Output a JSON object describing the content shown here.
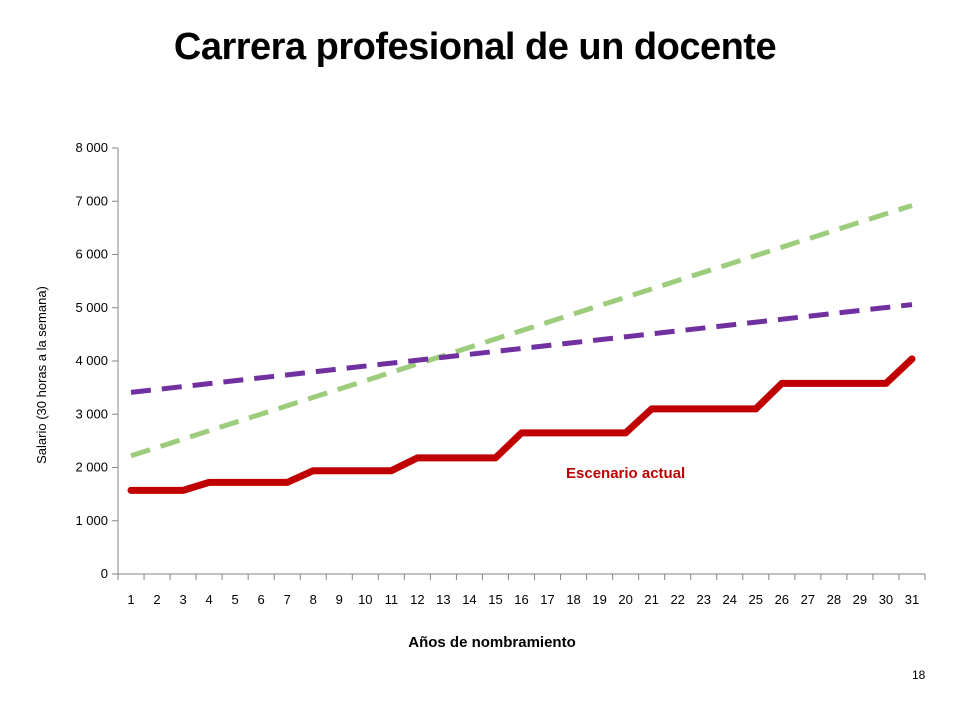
{
  "chart_data": {
    "type": "line",
    "title": "Carrera profesional de un docente",
    "xlabel": "Años de nombramiento",
    "ylabel": "Salario (30 horas a la semana)",
    "x": [
      1,
      2,
      3,
      4,
      5,
      6,
      7,
      8,
      9,
      10,
      11,
      12,
      13,
      14,
      15,
      16,
      17,
      18,
      19,
      20,
      21,
      22,
      23,
      24,
      25,
      26,
      27,
      28,
      29,
      30,
      31
    ],
    "ylim": [
      0,
      8000
    ],
    "yticks": [
      0,
      1000,
      2000,
      3000,
      4000,
      5000,
      6000,
      7000,
      8000
    ],
    "ytick_labels": [
      "0",
      "1 000",
      "2 000",
      "3 000",
      "4 000",
      "5 000",
      "6 000",
      "7 000",
      "8 000"
    ],
    "grid": false,
    "legend": "none",
    "series": [
      {
        "color": "#9ccc7c",
        "style": "dashed",
        "values": [
          2220,
          2390,
          2560,
          2730,
          2900,
          3070,
          3240,
          3410,
          3580,
          3750,
          3920,
          4070,
          4220,
          4370,
          4520,
          4670,
          4820,
          4970,
          5120,
          5270,
          5420,
          5570,
          5720,
          5870,
          6020,
          6170,
          6320,
          6470,
          6620,
          6770,
          6920
        ]
      },
      {
        "color": "#7030a0",
        "style": "dashed",
        "values": [
          3410,
          3465,
          3520,
          3575,
          3630,
          3685,
          3740,
          3795,
          3850,
          3905,
          3960,
          4015,
          4070,
          4125,
          4180,
          4235,
          4290,
          4345,
          4400,
          4455,
          4510,
          4565,
          4620,
          4675,
          4730,
          4785,
          4840,
          4895,
          4950,
          5005,
          5060
        ]
      },
      {
        "name": "Escenario actual",
        "color": "#c00000",
        "style": "solid",
        "values": [
          1570,
          1570,
          1570,
          1720,
          1720,
          1720,
          1720,
          1940,
          1940,
          1940,
          1940,
          2180,
          2180,
          2180,
          2180,
          2650,
          2650,
          2650,
          2650,
          2650,
          3100,
          3100,
          3100,
          3100,
          3100,
          3580,
          3580,
          3580,
          3580,
          3580,
          4040
        ]
      }
    ],
    "annotations": [
      {
        "text": "Escenario actual",
        "x": 20,
        "y": 1900,
        "color": "#c00000"
      }
    ]
  },
  "page_number": "18"
}
